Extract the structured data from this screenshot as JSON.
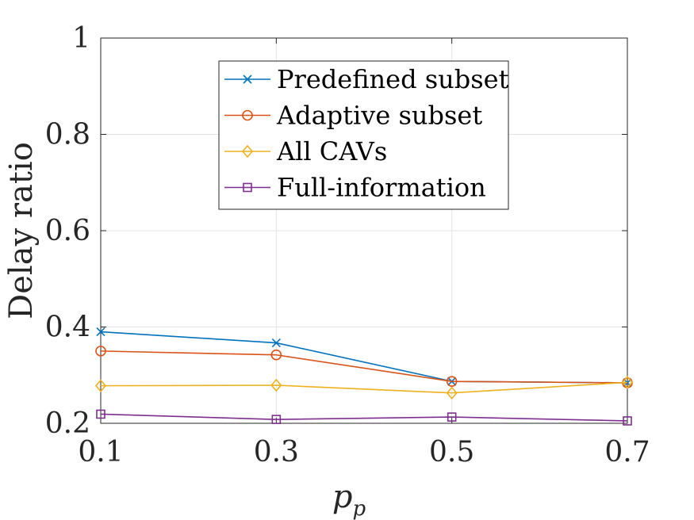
{
  "chart_data": {
    "type": "line",
    "xlabel_main": "p",
    "xlabel_sub": "p",
    "ylabel": "Delay ratio",
    "x": [
      0.1,
      0.3,
      0.5,
      0.7
    ],
    "x_tick_labels": [
      "0.1",
      "0.3",
      "0.5",
      "0.7"
    ],
    "xlim": [
      0.1,
      0.7
    ],
    "ylim": [
      0.2,
      1.0
    ],
    "y_ticks": [
      0.2,
      0.4,
      0.6,
      0.8,
      1.0
    ],
    "y_tick_labels": [
      "0.2",
      "0.4",
      "0.6",
      "0.8",
      "1"
    ],
    "grid": true,
    "legend_position": "top-center",
    "series": [
      {
        "name": "Predefined subset",
        "marker": "x",
        "color": "#0072BD",
        "values": [
          0.39,
          0.367,
          0.287,
          0.284
        ]
      },
      {
        "name": "Adaptive subset",
        "marker": "circle",
        "color": "#D95319",
        "values": [
          0.35,
          0.342,
          0.287,
          0.284
        ]
      },
      {
        "name": "All CAVs",
        "marker": "diamond",
        "color": "#EDB120",
        "values": [
          0.278,
          0.279,
          0.263,
          0.285
        ]
      },
      {
        "name": "Full-information",
        "marker": "square",
        "color": "#7E2F8E",
        "values": [
          0.219,
          0.208,
          0.213,
          0.205
        ]
      }
    ]
  }
}
